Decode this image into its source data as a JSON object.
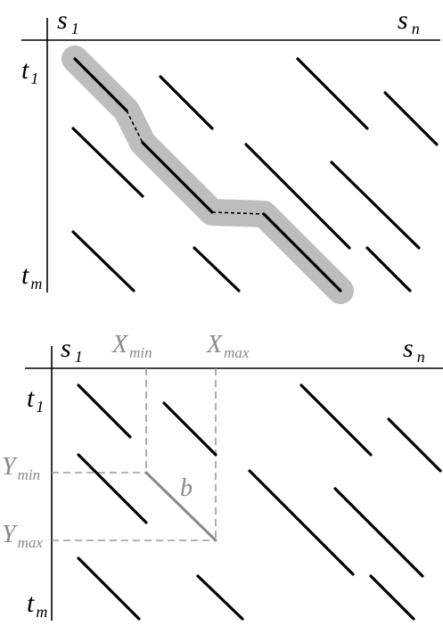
{
  "top_panel": {
    "s1": {
      "main": "s",
      "sub": "1"
    },
    "sn": {
      "main": "s",
      "sub": "n"
    },
    "t1": {
      "main": "t",
      "sub": "1"
    },
    "tm": {
      "main": "t",
      "sub": "m"
    }
  },
  "bottom_panel": {
    "s1": {
      "main": "s",
      "sub": "1"
    },
    "sn": {
      "main": "s",
      "sub": "n"
    },
    "t1": {
      "main": "t",
      "sub": "1"
    },
    "tm": {
      "main": "t",
      "sub": "m"
    },
    "xmin": {
      "main": "X",
      "sub": "min"
    },
    "xmax": {
      "main": "X",
      "sub": "max"
    },
    "ymin": {
      "main": "Y",
      "sub": "min"
    },
    "ymax": {
      "main": "Y",
      "sub": "max"
    },
    "segment_label": "b"
  },
  "colors": {
    "segments": "#000000",
    "highlight_band": "#bdbdbd",
    "annotation_grey": "#8a8a8a"
  }
}
